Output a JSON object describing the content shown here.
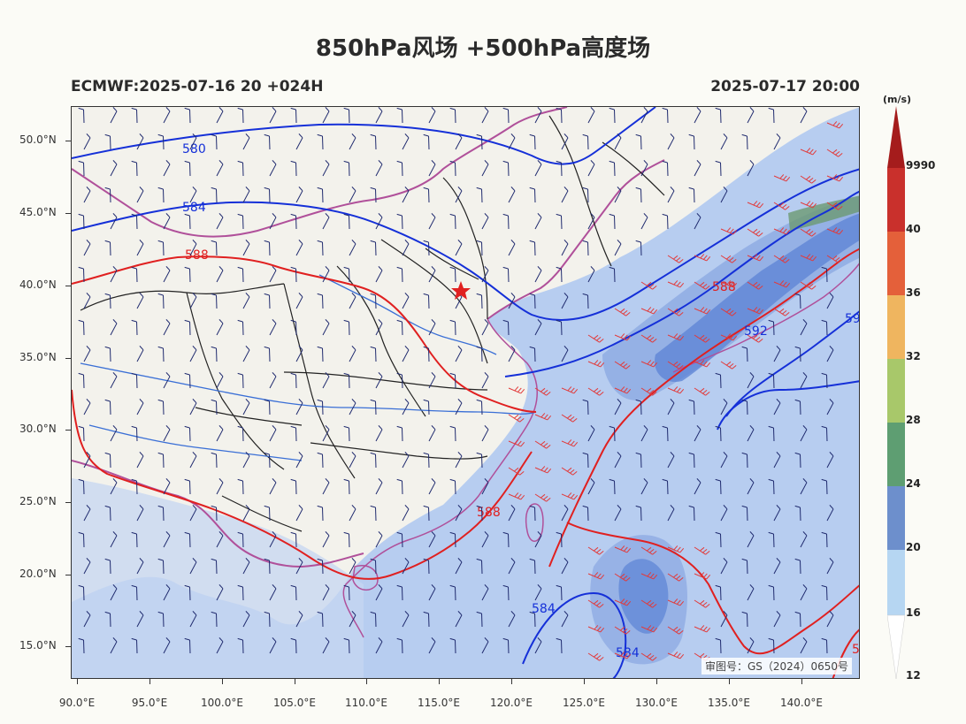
{
  "title": "850hPa风场 +500hPa高度场",
  "subtitle_left": "ECMWF:2025-07-16 20 +024H",
  "subtitle_right": "2025-07-17 20:00",
  "map": {
    "lon_ticks": [
      "90.0°E",
      "95.0°E",
      "100.0°E",
      "105.0°E",
      "110.0°E",
      "115.0°E",
      "120.0°E",
      "125.0°E",
      "130.0°E",
      "135.0°E",
      "140.0°E"
    ],
    "lat_ticks": [
      "50.0°N",
      "45.0°N",
      "40.0°N",
      "35.0°N",
      "30.0°N",
      "25.0°N",
      "20.0°N",
      "15.0°N"
    ],
    "contour_labels": [
      {
        "text": "580",
        "color": "#1530d8"
      },
      {
        "text": "584",
        "color": "#1530d8"
      },
      {
        "text": "588",
        "color": "#e02020"
      },
      {
        "text": "588",
        "color": "#e02020"
      },
      {
        "text": "588",
        "color": "#e02020"
      },
      {
        "text": "592",
        "color": "#1530d8"
      },
      {
        "text": "584",
        "color": "#1530d8"
      },
      {
        "text": "584",
        "color": "#1530d8"
      },
      {
        "text": "59",
        "color": "#1530d8"
      },
      {
        "text": "5",
        "color": "#e02020"
      }
    ],
    "approval": "审图号：GS（2024）0650号",
    "capital_marker": "star"
  },
  "colorbar": {
    "unit": "(m/s)",
    "labels": [
      "9990",
      "40",
      "36",
      "32",
      "28",
      "24",
      "20",
      "16",
      "12"
    ],
    "colors": [
      "#a51c1c",
      "#c9302c",
      "#e4603a",
      "#efb55f",
      "#a8c86a",
      "#5e9e72",
      "#6d8fcc",
      "#b6d6f2",
      "#ffffff"
    ]
  },
  "colors": {
    "ocean": "#a9c2ec",
    "land": "#f3f2ec",
    "height_low": "#1530d8",
    "height_588": "#e02020",
    "province": "#222222",
    "border": "#b0509a",
    "river": "#3a6fd6"
  }
}
